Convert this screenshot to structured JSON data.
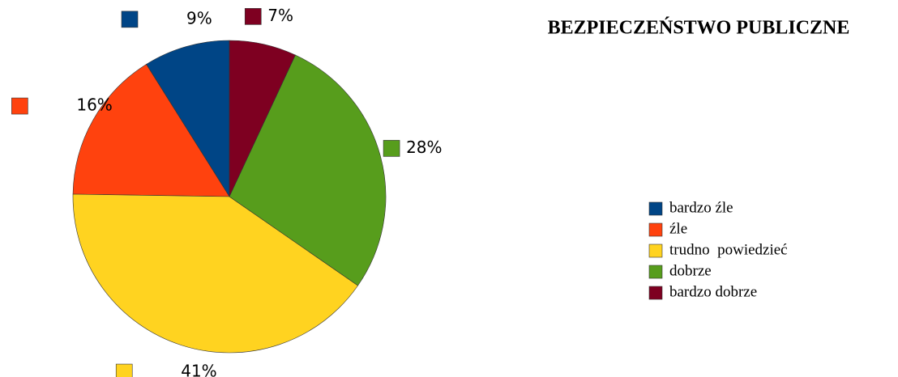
{
  "chart_data": {
    "type": "pie",
    "title": "BEZPIECZEŃSTWO PUBLICZNE",
    "categories": [
      "bardzo źle",
      "źle",
      "trudno  powiedzieć",
      "dobrze",
      "bardzo dobrze"
    ],
    "values": [
      9,
      16,
      41,
      28,
      7
    ],
    "value_labels": [
      "9%",
      "16%",
      "41%",
      "28%",
      "7%"
    ],
    "colors": [
      "#004586",
      "#ff420e",
      "#ffd320",
      "#579d1c",
      "#7e0021"
    ],
    "legend": "right"
  }
}
